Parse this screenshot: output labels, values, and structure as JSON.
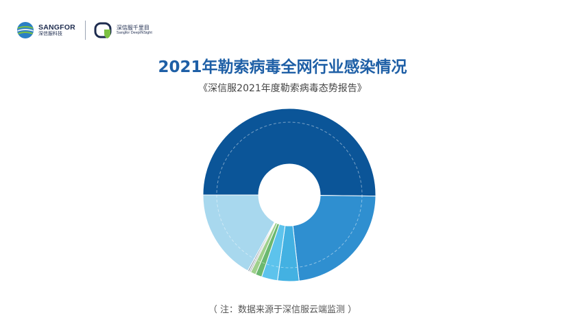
{
  "header": {
    "brand_en": "SANGFOR",
    "brand_cn": "深信服科技",
    "product_cn": "深信服千里目",
    "product_en": "Sangfor DeepINSight"
  },
  "title": "2021年勒索病毒全网行业感染情况",
  "subtitle": "《深信服2021年度勒索病毒态势报告》",
  "note": "（ 注：数据来源于深信服云端监测 ）",
  "colors": {
    "title": "#1e5fa6",
    "dark_blue": "#0b5598",
    "mid_blue": "#2f8fd0",
    "bright_blue": "#43b1e2",
    "light_blue": "#5dc3ec",
    "pale_blue": "#a8d8ee",
    "green": "#6bb86f",
    "light_green": "#9fd08c",
    "gray": "#b7bcc2"
  },
  "chart_data": {
    "type": "donut",
    "title": "2021年勒索病毒全网行业感染情况",
    "values": [
      50.2,
      23.0,
      4.0,
      3.0,
      1.2,
      1.0,
      0.3,
      0.3,
      17.0
    ],
    "colors": [
      "#0b5598",
      "#2f8fd0",
      "#43b1e2",
      "#5dc3ec",
      "#6bb86f",
      "#9fd08c",
      "#b7bcc2",
      "#8a9aa8",
      "#a8d8ee"
    ],
    "start_angle_deg": 180,
    "direction": "clockwise",
    "legend": "none"
  }
}
